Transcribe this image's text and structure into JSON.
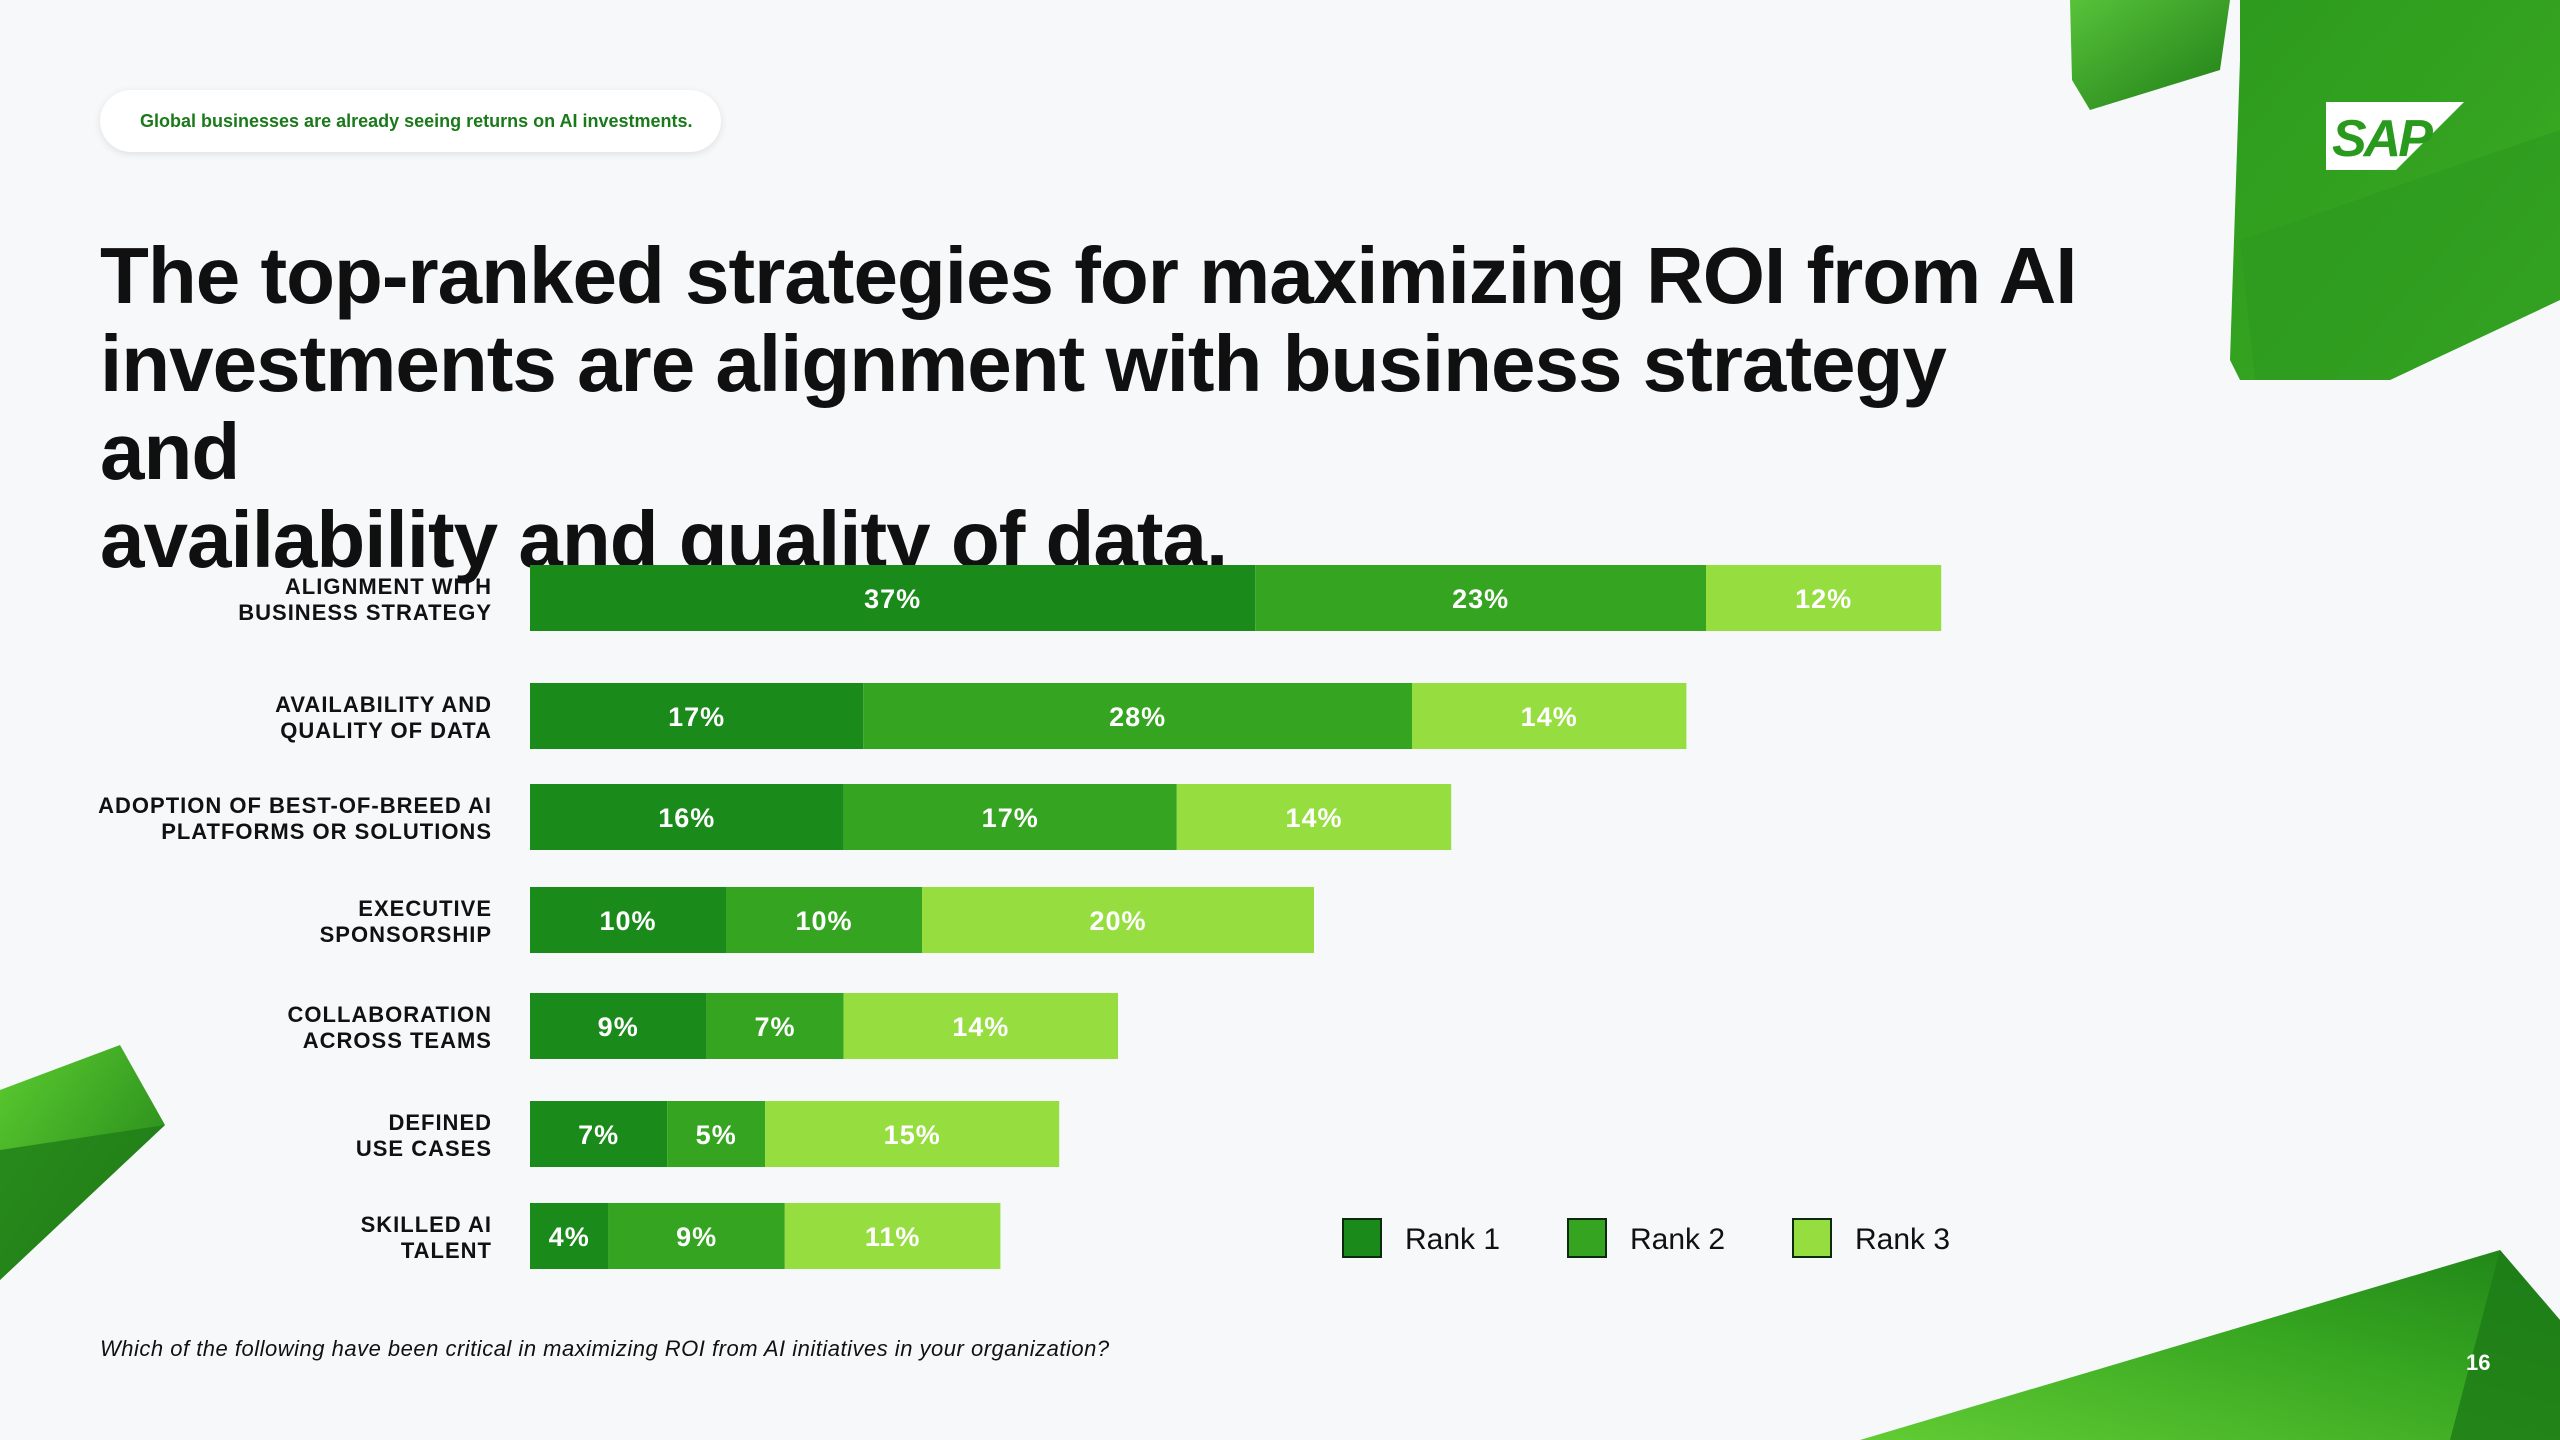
{
  "header": {
    "tagline": "Global businesses are already seeing returns on AI investments.",
    "headline_line1": "The top-ranked strategies for maximizing ROI from AI",
    "headline_line2": "investments are alignment with business strategy and",
    "headline_line3": "availability and quality of data."
  },
  "brand": {
    "logo_text": "SAP",
    "green_dark": "#1a8a1a",
    "green_mid": "#35a420",
    "green_light": "#96dd40"
  },
  "chart_data": {
    "type": "bar",
    "orientation": "horizontal",
    "stacked": true,
    "categories": [
      [
        "ALIGNMENT WITH",
        "BUSINESS STRATEGY"
      ],
      [
        "AVAILABILITY AND",
        "QUALITY OF DATA"
      ],
      [
        "ADOPTION OF BEST-OF-BREED AI",
        "PLATFORMS OR SOLUTIONS"
      ],
      [
        "EXECUTIVE",
        "SPONSORSHIP"
      ],
      [
        "COLLABORATION",
        "ACROSS TEAMS"
      ],
      [
        "DEFINED",
        "USE CASES"
      ],
      [
        "SKILLED AI",
        "TALENT"
      ]
    ],
    "series": [
      {
        "name": "Rank 1",
        "color": "#1a8a1a",
        "values": [
          37,
          17,
          16,
          10,
          9,
          7,
          4
        ],
        "labels": [
          "37%",
          "17%",
          "16%",
          "10%",
          "9%",
          "7%",
          "4%"
        ]
      },
      {
        "name": "Rank 2",
        "color": "#35a420",
        "values": [
          23,
          28,
          17,
          10,
          7,
          5,
          9
        ],
        "labels": [
          "23%",
          "28%",
          "17%",
          "10%",
          "7%",
          "5%",
          "9%"
        ]
      },
      {
        "name": "Rank 3",
        "color": "#96dd40",
        "values": [
          12,
          14,
          14,
          20,
          14,
          15,
          11
        ],
        "labels": [
          "12%",
          "14%",
          "14%",
          "20%",
          "14%",
          "15%",
          "11%"
        ]
      }
    ],
    "xlim": [
      0,
      100
    ],
    "legend_position": "bottom-right",
    "grid": false
  },
  "footer": {
    "question": "Which of the following have been critical in maximizing ROI from AI initiatives in your organization?",
    "page_number": "16"
  }
}
